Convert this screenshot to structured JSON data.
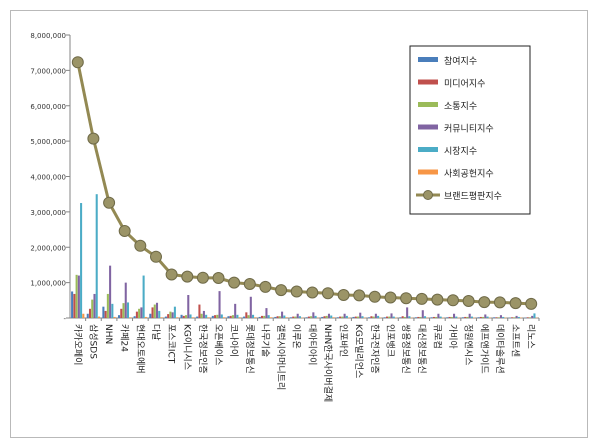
{
  "chart_data": {
    "type": "bar",
    "title": "",
    "xlabel": "",
    "ylabel": "",
    "ylim": [
      0,
      8000000
    ],
    "yticks": [
      0,
      1000000,
      2000000,
      3000000,
      4000000,
      5000000,
      6000000,
      7000000,
      8000000
    ],
    "ytick_labels": [
      "-",
      "1,000,000",
      "2,000,000",
      "3,000,000",
      "4,000,000",
      "5,000,000",
      "6,000,000",
      "7,000,000",
      "8,000,000"
    ],
    "grid": false,
    "legend_position": "top-right",
    "categories": [
      "카카오페이",
      "삼성SDS",
      "NHN",
      "카페24",
      "현대오토에버",
      "다날",
      "포스코ICT",
      "KG이니시스",
      "한국정보인증",
      "오픈베이스",
      "코나아이",
      "롯데정보통신",
      "나무기술",
      "갤럭시아머니트리",
      "이루온",
      "대아티아이",
      "NHN한국사이버결제",
      "인포바인",
      "KG모빌리언스",
      "한국전자인증",
      "인포뱅크",
      "쌍용정보통신",
      "대신정보통신",
      "큐로컴",
      "가비아",
      "정원엔시스",
      "에프앤가이드",
      "데이타솔루션",
      "소프트센",
      "리노스"
    ],
    "series": [
      {
        "name": "참여지수",
        "color": "#4a7ebb",
        "kind": "bar",
        "values": [
          750000,
          120000,
          320000,
          80000,
          50000,
          120000,
          40000,
          90000,
          40000,
          60000,
          50000,
          40000,
          30000,
          30000,
          20000,
          20000,
          30000,
          20000,
          30000,
          20000,
          20000,
          20000,
          20000,
          20000,
          20000,
          20000,
          20000,
          20000,
          10000,
          10000
        ]
      },
      {
        "name": "미디어지수",
        "color": "#c0504d",
        "kind": "bar",
        "values": [
          680000,
          260000,
          200000,
          260000,
          180000,
          300000,
          110000,
          60000,
          380000,
          80000,
          60000,
          160000,
          60000,
          50000,
          40000,
          40000,
          50000,
          40000,
          40000,
          50000,
          40000,
          50000,
          30000,
          30000,
          30000,
          30000,
          30000,
          20000,
          20000,
          20000
        ]
      },
      {
        "name": "소통지수",
        "color": "#9bbb59",
        "kind": "bar",
        "values": [
          1220000,
          520000,
          680000,
          420000,
          260000,
          380000,
          180000,
          80000,
          120000,
          90000,
          80000,
          80000,
          60000,
          50000,
          40000,
          50000,
          60000,
          40000,
          40000,
          40000,
          40000,
          30000,
          30000,
          30000,
          30000,
          30000,
          30000,
          20000,
          20000,
          20000
        ]
      },
      {
        "name": "커뮤니티지수",
        "color": "#8064a2",
        "kind": "bar",
        "values": [
          1200000,
          680000,
          1480000,
          1000000,
          300000,
          430000,
          160000,
          650000,
          200000,
          760000,
          400000,
          600000,
          280000,
          180000,
          120000,
          160000,
          120000,
          120000,
          150000,
          120000,
          130000,
          300000,
          220000,
          120000,
          120000,
          120000,
          100000,
          80000,
          60000,
          60000
        ]
      },
      {
        "name": "시장지수",
        "color": "#4bacc6",
        "kind": "bar",
        "values": [
          3250000,
          3500000,
          400000,
          440000,
          1200000,
          200000,
          320000,
          100000,
          90000,
          100000,
          90000,
          90000,
          80000,
          70000,
          50000,
          60000,
          70000,
          60000,
          50000,
          60000,
          40000,
          50000,
          50000,
          40000,
          40000,
          40000,
          40000,
          30000,
          30000,
          130000
        ]
      },
      {
        "name": "사회공헌지수",
        "color": "#f79646",
        "kind": "bar",
        "values": [
          120000,
          40000,
          30000,
          20000,
          30000,
          20000,
          20000,
          20000,
          20000,
          20000,
          20000,
          20000,
          20000,
          20000,
          10000,
          10000,
          20000,
          10000,
          10000,
          10000,
          10000,
          10000,
          10000,
          10000,
          10000,
          10000,
          10000,
          10000,
          10000,
          10000
        ]
      },
      {
        "name": "브랜드평판지수",
        "color": "#938953",
        "kind": "line",
        "values": [
          7230000,
          5070000,
          3260000,
          2460000,
          2040000,
          1730000,
          1230000,
          1170000,
          1140000,
          1130000,
          1000000,
          960000,
          880000,
          790000,
          750000,
          720000,
          700000,
          650000,
          640000,
          600000,
          580000,
          560000,
          540000,
          520000,
          500000,
          480000,
          450000,
          440000,
          420000,
          400000
        ]
      }
    ]
  }
}
